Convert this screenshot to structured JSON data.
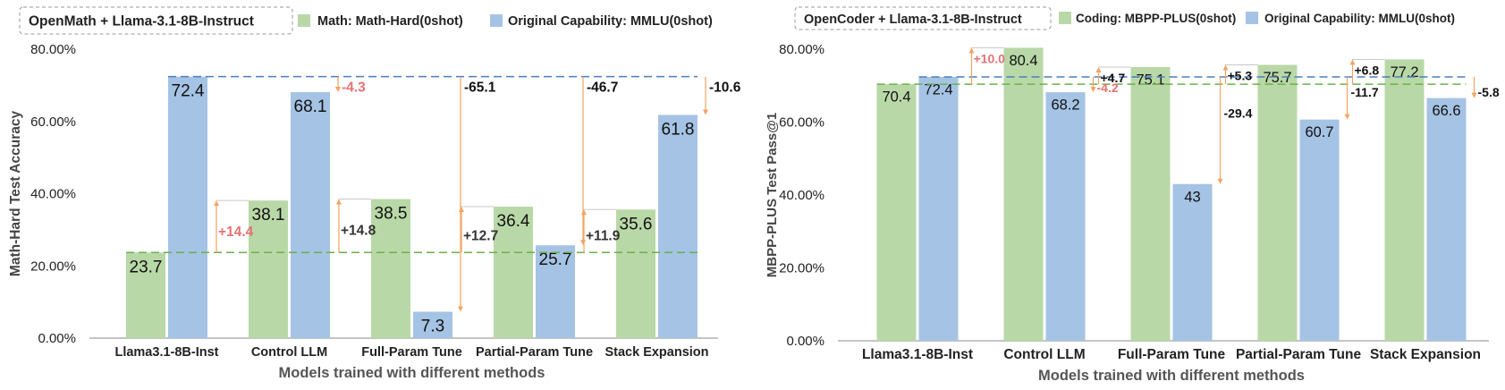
{
  "chart_data": [
    {
      "type": "bar",
      "title_box": "OpenMath + Llama-3.1-8B-Instruct",
      "xlabel": "Models trained with different methods",
      "ylabel": "Math-Hard Test Accuracy",
      "ylim": [
        0,
        80
      ],
      "yticks": [
        "0.00%",
        "20.00%",
        "40.00%",
        "60.00%",
        "80.00%"
      ],
      "categories": [
        "Llama3.1-8B-Inst",
        "Control LLM",
        "Full-Param Tune",
        "Partial-Param Tune",
        "Stack Expansion"
      ],
      "series": [
        {
          "name": "Math: Math-Hard(0shot)",
          "color": "#b9d8a7",
          "values": [
            23.7,
            38.1,
            38.5,
            36.4,
            35.6
          ],
          "labels": [
            "23.7",
            "38.1",
            "38.5",
            "36.4",
            "35.6"
          ]
        },
        {
          "name": "Original Capability: MMLU(0shot)",
          "color": "#a5c3e4",
          "values": [
            72.4,
            68.1,
            7.3,
            25.7,
            61.8
          ],
          "labels": [
            "72.4",
            "68.1",
            "7.3",
            "25.7",
            "61.8"
          ]
        }
      ],
      "gains": [
        "+14.4",
        "+14.8",
        "+12.7",
        "+11.9"
      ],
      "drops": [
        "-4.3",
        "-65.1",
        "-46.7",
        "-10.6"
      ],
      "baseline_green": 23.7,
      "baseline_blue": 72.4
    },
    {
      "type": "bar",
      "title_box": "OpenCoder + Llama-3.1-8B-Instruct",
      "xlabel": "Models trained with different methods",
      "ylabel": "MBPP-PLUS Test Pass@1",
      "ylim": [
        0,
        80
      ],
      "yticks": [
        "0.00%",
        "20.00%",
        "40.00%",
        "60.00%",
        "80.00%"
      ],
      "categories": [
        "Llama3.1-8B-Inst",
        "Control LLM",
        "Full-Param Tune",
        "Partial-Param Tune",
        "Stack Expansion"
      ],
      "series": [
        {
          "name": "Coding: MBPP-PLUS(0shot)",
          "color": "#b9d8a7",
          "values": [
            70.4,
            80.4,
            75.1,
            75.7,
            77.2
          ],
          "labels": [
            "70.4",
            "80.4",
            "75.1",
            "75.7",
            "77.2"
          ]
        },
        {
          "name": "Original Capability: MMLU(0shot)",
          "color": "#a5c3e4",
          "values": [
            72.4,
            68.2,
            43,
            60.7,
            66.6
          ],
          "labels": [
            "72.4",
            "68.2",
            "43",
            "60.7",
            "66.6"
          ]
        }
      ],
      "gains": [
        "+10.0",
        "+4.7",
        "+5.3",
        "+6.8"
      ],
      "drops": [
        "-4.2",
        "-29.4",
        "-11.7",
        "-5.8"
      ],
      "baseline_green": 70.4,
      "baseline_blue": 72.4
    }
  ]
}
